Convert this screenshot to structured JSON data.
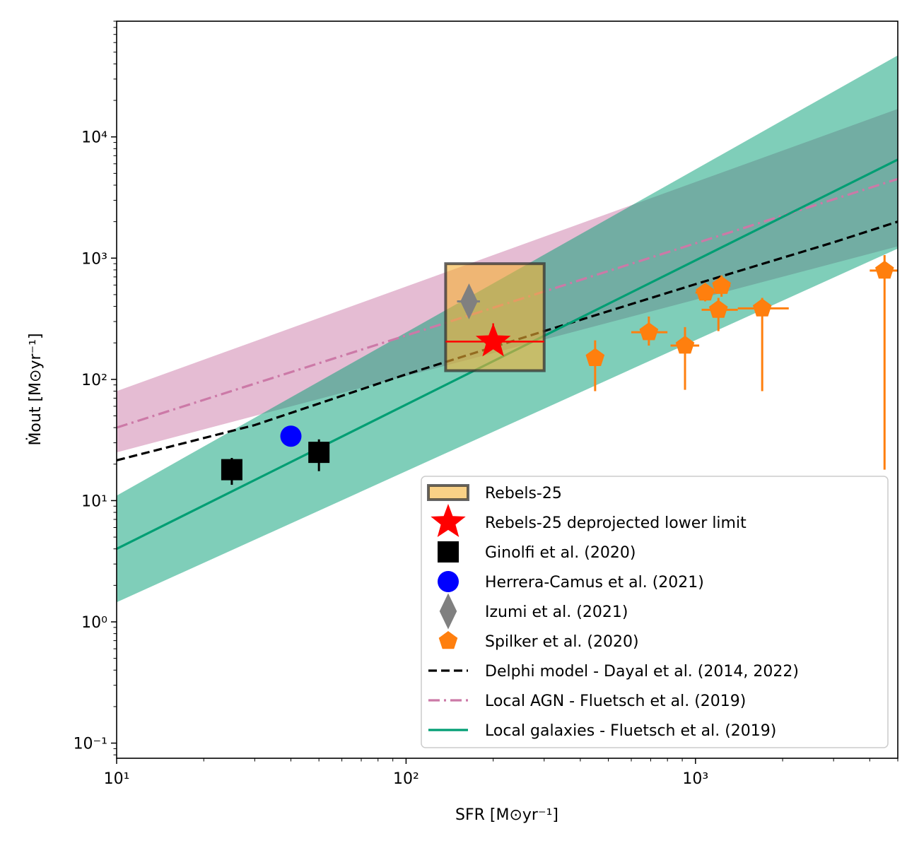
{
  "chart_data": {
    "type": "scatter",
    "title": "",
    "xlabel": "SFR [M⊙yr⁻¹]",
    "ylabel": "Ṁout [M⊙yr⁻¹]",
    "xscale": "log",
    "yscale": "log",
    "xlim": [
      10,
      5000
    ],
    "ylim": [
      0.075,
      90000
    ],
    "x_ticks": [
      {
        "value": 10,
        "label": "10¹"
      },
      {
        "value": 100,
        "label": "10²"
      },
      {
        "value": 1000,
        "label": "10³"
      }
    ],
    "y_ticks": [
      {
        "value": 0.1,
        "label": "10⁻¹"
      },
      {
        "value": 1,
        "label": "10⁰"
      },
      {
        "value": 10,
        "label": "10¹"
      },
      {
        "value": 100,
        "label": "10²"
      },
      {
        "value": 1000,
        "label": "10³"
      },
      {
        "value": 10000,
        "label": "10⁴"
      }
    ],
    "legend_position": "lower-right",
    "bands": [
      {
        "key": "agn_band",
        "color": "#cc79a7",
        "opacity": 0.5,
        "x": [
          10,
          5000
        ],
        "lower": [
          25,
          1250
        ],
        "upper": [
          80,
          17000
        ]
      },
      {
        "key": "gal_band",
        "color": "#009e73",
        "opacity": 0.5,
        "x": [
          10,
          5000
        ],
        "lower": [
          1.45,
          1200
        ],
        "upper": [
          11,
          47000
        ]
      }
    ],
    "series": [
      {
        "key": "rebels_box",
        "name": "Rebels-25",
        "kind": "box",
        "color": "#f5b335",
        "edge": "#333333",
        "x_range": [
          137,
          300
        ],
        "y_range": [
          118,
          900
        ]
      },
      {
        "key": "deproj",
        "name": "Rebels-25 deprojected lower limit",
        "kind": "star",
        "color": "#ff0000",
        "points": [
          {
            "x": 200,
            "y": 205,
            "xerr": [
              137,
              300
            ],
            "yerr": [
              205,
              290
            ]
          }
        ]
      },
      {
        "key": "ginolfi",
        "name": "Ginolfi et al. (2020)",
        "kind": "square",
        "color": "#000000",
        "points": [
          {
            "x": 25,
            "y": 18,
            "yerr": [
              13.5,
              22.5
            ]
          },
          {
            "x": 50,
            "y": 25,
            "yerr": [
              17.5,
              32
            ]
          }
        ]
      },
      {
        "key": "herrera",
        "name": "Herrera-Camus et al. (2021)",
        "kind": "circle",
        "color": "#0000ff",
        "points": [
          {
            "x": 40,
            "y": 34
          }
        ]
      },
      {
        "key": "izumi",
        "name": "Izumi et al. (2021)",
        "kind": "diamond",
        "color": "#808080",
        "points": [
          {
            "x": 165,
            "y": 440,
            "xerr": [
              150,
              180
            ],
            "yerr": [
              350,
              540
            ]
          }
        ]
      },
      {
        "key": "spilker",
        "name": "Spilker et al. (2020)",
        "kind": "pentagon",
        "color": "#ff7f0e",
        "points": [
          {
            "x": 450,
            "y": 150,
            "yerr": [
              80,
              210
            ]
          },
          {
            "x": 690,
            "y": 245,
            "xerr": [
              600,
              800
            ],
            "yerr": [
              190,
              330
            ]
          },
          {
            "x": 920,
            "y": 190,
            "xerr": [
              820,
              1030
            ],
            "yerr": [
              82,
              270
            ]
          },
          {
            "x": 1080,
            "y": 520,
            "xerr": [
              1000,
              1170
            ],
            "yerr": [
              440,
              610
            ]
          },
          {
            "x": 1200,
            "y": 375,
            "xerr": [
              1050,
              1400
            ],
            "yerr": [
              250,
              470
            ]
          },
          {
            "x": 1230,
            "y": 590,
            "xerr": [
              1150,
              1320
            ],
            "yerr": [
              480,
              720
            ]
          },
          {
            "x": 1700,
            "y": 385,
            "xerr": [
              1400,
              2100
            ],
            "yerr": [
              80,
              470
            ]
          },
          {
            "x": 4500,
            "y": 790,
            "xerr": [
              4000,
              5000
            ],
            "yerr": [
              18,
              1060
            ]
          }
        ]
      },
      {
        "key": "delphi",
        "name": "Delphi model - Dayal et al. (2014, 2022)",
        "kind": "line",
        "style": "dashed",
        "color": "#000000",
        "x": [
          10,
          30,
          100,
          300,
          1000,
          3000,
          5000
        ],
        "y": [
          21.5,
          42,
          110,
          250,
          610,
          1350,
          2000
        ]
      },
      {
        "key": "agn",
        "name": "Local AGN - Fluetsch et al. (2019)",
        "kind": "line",
        "style": "dashdot",
        "color": "#cc79a7",
        "x": [
          10,
          5000
        ],
        "y": [
          40,
          4500
        ]
      },
      {
        "key": "gal",
        "name": "Local galaxies - Fluetsch et al. (2019)",
        "kind": "line",
        "style": "solid",
        "color": "#009e73",
        "x": [
          10,
          5000
        ],
        "y": [
          4,
          6500
        ]
      }
    ]
  }
}
